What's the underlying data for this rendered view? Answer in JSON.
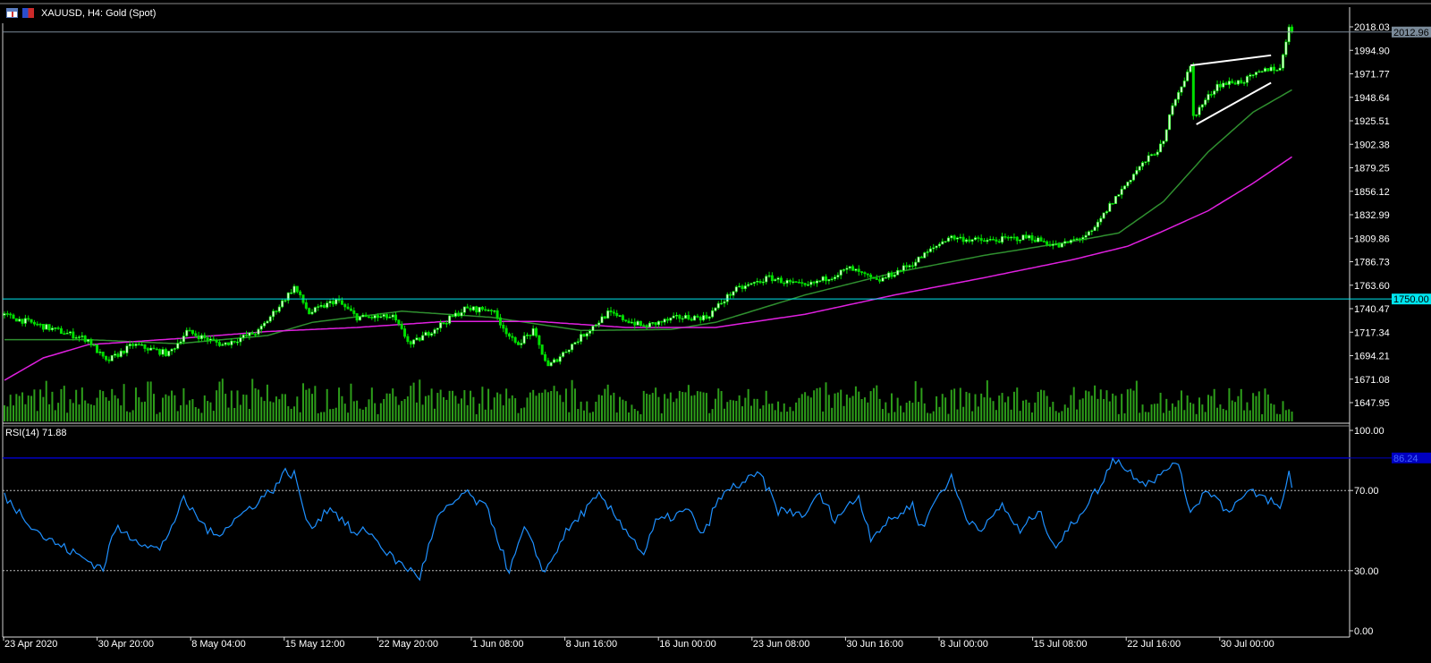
{
  "window": {
    "title": "XAUUSD, H4:  Gold (Spot)",
    "icons": [
      "chart-window-icon",
      "symbol-icon"
    ]
  },
  "colors": {
    "background": "#000000",
    "candle": "#00e000",
    "volume": "#2d9e1a",
    "ma_fast": "#2f8f2f",
    "ma_slow": "#e020e0",
    "rsi": "#1e90ff",
    "level_1750": "#00e5ee",
    "current_price_line": "#7a8a99",
    "rsi_level_line": "#0000c0",
    "trendline": "#ffffff"
  },
  "chart_data": [
    {
      "type": "candlestick",
      "symbol": "XAUUSD",
      "timeframe": "H4",
      "ylim": [
        1635,
        2025
      ],
      "y_ticks": [
        "2018.03",
        "1994.90",
        "1971.77",
        "1948.64",
        "1925.51",
        "1902.38",
        "1879.25",
        "1856.12",
        "1832.99",
        "1809.86",
        "1786.73",
        "1763.60",
        "1740.47",
        "1717.34",
        "1694.21",
        "1671.08",
        "1647.95"
      ],
      "y_tick_values": [
        2018.03,
        1994.9,
        1971.77,
        1948.64,
        1925.51,
        1902.38,
        1879.25,
        1856.12,
        1832.99,
        1809.86,
        1786.73,
        1763.6,
        1740.47,
        1717.34,
        1694.21,
        1671.08,
        1647.95
      ],
      "x_ticks": [
        "23 Apr 2020",
        "30 Apr 20:00",
        "8 May 04:00",
        "15 May 12:00",
        "22 May 20:00",
        "1 Jun 08:00",
        "8 Jun 16:00",
        "16 Jun 00:00",
        "23 Jun 08:00",
        "30 Jun 16:00",
        "8 Jul 00:00",
        "15 Jul 08:00",
        "22 Jul 16:00",
        "30 Jul 00:00"
      ],
      "bar_count": 432,
      "close_anchors": [
        [
          0,
          1734
        ],
        [
          13,
          1723
        ],
        [
          28,
          1710
        ],
        [
          34,
          1688
        ],
        [
          43,
          1705
        ],
        [
          55,
          1696
        ],
        [
          61,
          1718
        ],
        [
          73,
          1705
        ],
        [
          85,
          1718
        ],
        [
          91,
          1740
        ],
        [
          97,
          1762
        ],
        [
          102,
          1736
        ],
        [
          111,
          1749
        ],
        [
          118,
          1732
        ],
        [
          130,
          1732
        ],
        [
          136,
          1705
        ],
        [
          145,
          1723
        ],
        [
          154,
          1740
        ],
        [
          163,
          1740
        ],
        [
          171,
          1705
        ],
        [
          177,
          1718
        ],
        [
          182,
          1683
        ],
        [
          190,
          1705
        ],
        [
          202,
          1736
        ],
        [
          214,
          1723
        ],
        [
          226,
          1732
        ],
        [
          235,
          1732
        ],
        [
          244,
          1758
        ],
        [
          256,
          1771
        ],
        [
          268,
          1762
        ],
        [
          283,
          1780
        ],
        [
          292,
          1767
        ],
        [
          304,
          1785
        ],
        [
          316,
          1811
        ],
        [
          328,
          1807
        ],
        [
          343,
          1811
        ],
        [
          353,
          1802
        ],
        [
          364,
          1815
        ],
        [
          370,
          1842
        ],
        [
          379,
          1877
        ],
        [
          388,
          1903
        ],
        [
          391,
          1943
        ],
        [
          397,
          1978
        ],
        [
          398,
          1930
        ],
        [
          406,
          1961
        ],
        [
          415,
          1965
        ],
        [
          424,
          1978
        ],
        [
          427,
          1976
        ],
        [
          430,
          2020
        ],
        [
          431,
          2013
        ]
      ],
      "ma_fast_anchors": [
        [
          0,
          1710
        ],
        [
          28,
          1710
        ],
        [
          58,
          1706
        ],
        [
          88,
          1714
        ],
        [
          103,
          1727
        ],
        [
          133,
          1738
        ],
        [
          163,
          1732
        ],
        [
          193,
          1719
        ],
        [
          223,
          1720
        ],
        [
          238,
          1727
        ],
        [
          268,
          1754
        ],
        [
          298,
          1776
        ],
        [
          328,
          1793
        ],
        [
          358,
          1807
        ],
        [
          373,
          1815
        ],
        [
          388,
          1846
        ],
        [
          403,
          1895
        ],
        [
          418,
          1934
        ],
        [
          431,
          1956
        ]
      ],
      "ma_slow_anchors": [
        [
          0,
          1670
        ],
        [
          13,
          1692
        ],
        [
          28,
          1705
        ],
        [
          58,
          1711
        ],
        [
          88,
          1718
        ],
        [
          118,
          1722
        ],
        [
          148,
          1728
        ],
        [
          178,
          1728
        ],
        [
          208,
          1722
        ],
        [
          238,
          1722
        ],
        [
          268,
          1735
        ],
        [
          298,
          1754
        ],
        [
          328,
          1771
        ],
        [
          358,
          1789
        ],
        [
          376,
          1802
        ],
        [
          388,
          1817
        ],
        [
          403,
          1837
        ],
        [
          418,
          1864
        ],
        [
          431,
          1890
        ]
      ],
      "horizontal_lines": [
        {
          "label": "1750.00",
          "value": 1750.0
        },
        {
          "label": "2012.96",
          "value": 2012.96
        }
      ],
      "trendlines": [
        {
          "from": [
            397,
            1980
          ],
          "to": [
            424,
            1990
          ]
        },
        {
          "from": [
            399,
            1922
          ],
          "to": [
            424,
            1963
          ]
        }
      ]
    },
    {
      "type": "line",
      "title": "RSI(14) 71.88",
      "ylim": [
        0,
        100
      ],
      "y_ticks": [
        "100.00",
        "70.00",
        "30.00",
        "0.00"
      ],
      "y_tick_values": [
        100,
        70,
        30,
        0
      ],
      "levels": [
        70,
        30
      ],
      "highlight_level": {
        "label": "86.24",
        "value": 86.24
      },
      "values_anchors": [
        [
          0,
          67
        ],
        [
          13,
          47
        ],
        [
          33,
          31
        ],
        [
          37,
          51
        ],
        [
          52,
          40
        ],
        [
          60,
          65
        ],
        [
          70,
          47
        ],
        [
          81,
          60
        ],
        [
          90,
          71
        ],
        [
          94,
          79
        ],
        [
          97,
          78
        ],
        [
          102,
          51
        ],
        [
          109,
          62
        ],
        [
          118,
          47
        ],
        [
          121,
          51
        ],
        [
          130,
          36
        ],
        [
          139,
          27
        ],
        [
          145,
          56
        ],
        [
          154,
          69
        ],
        [
          162,
          60
        ],
        [
          169,
          29
        ],
        [
          174,
          51
        ],
        [
          181,
          29
        ],
        [
          187,
          47
        ],
        [
          193,
          58
        ],
        [
          199,
          67
        ],
        [
          208,
          51
        ],
        [
          214,
          38
        ],
        [
          218,
          54
        ],
        [
          229,
          60
        ],
        [
          234,
          47
        ],
        [
          238,
          63
        ],
        [
          243,
          71
        ],
        [
          253,
          78
        ],
        [
          259,
          60
        ],
        [
          269,
          58
        ],
        [
          272,
          69
        ],
        [
          278,
          56
        ],
        [
          286,
          67
        ],
        [
          290,
          47
        ],
        [
          293,
          51
        ],
        [
          304,
          63
        ],
        [
          307,
          51
        ],
        [
          313,
          69
        ],
        [
          317,
          76
        ],
        [
          322,
          56
        ],
        [
          328,
          51
        ],
        [
          334,
          63
        ],
        [
          340,
          49
        ],
        [
          346,
          60
        ],
        [
          352,
          42
        ],
        [
          358,
          54
        ],
        [
          364,
          67
        ],
        [
          368,
          74
        ],
        [
          371,
          87
        ],
        [
          376,
          80
        ],
        [
          382,
          74
        ],
        [
          388,
          78
        ],
        [
          392,
          86
        ],
        [
          397,
          60
        ],
        [
          403,
          71
        ],
        [
          409,
          60
        ],
        [
          417,
          69
        ],
        [
          424,
          65
        ],
        [
          427,
          60
        ],
        [
          430,
          79
        ],
        [
          431,
          73
        ]
      ]
    }
  ]
}
